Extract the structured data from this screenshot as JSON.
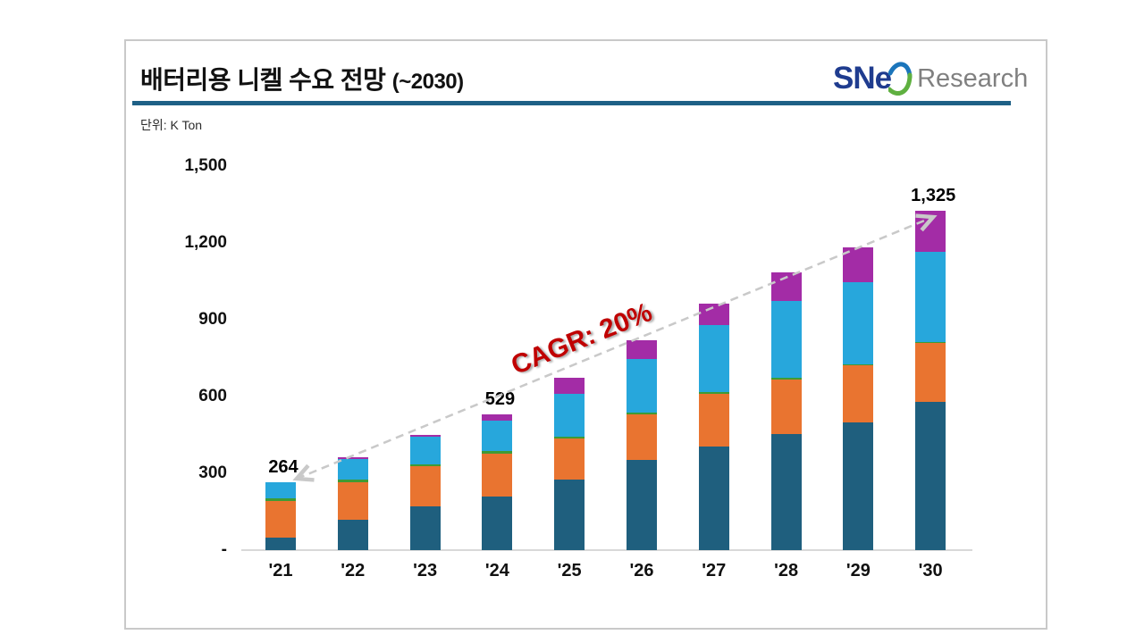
{
  "header": {
    "title_main": "배터리용 니켈 수요 전망",
    "title_suffix": "(~2030)",
    "unit_label": "단위: K Ton",
    "logo": {
      "wordmark": "SNe",
      "suffix": "Research"
    }
  },
  "annotation": {
    "cagr_label": "CAGR: 20%"
  },
  "colors": {
    "title_underline": "#1e6086",
    "axis_line": "#d9d9d9",
    "trend_line": "#c9c9c9",
    "card_border": "#c9c9c9",
    "cagr_red": "#c00000",
    "logo_blue": "#1f3c8f",
    "logo_swoosh_blue": "#1b75bb",
    "logo_swoosh_green": "#5fb040",
    "logo_gray": "#808080"
  },
  "chart_data": {
    "type": "bar",
    "stacked": true,
    "title": "배터리용 니켈 수요 전망 (~2030)",
    "unit": "K Ton",
    "categories": [
      "'21",
      "'22",
      "'23",
      "'24",
      "'25",
      "'26",
      "'27",
      "'28",
      "'29",
      "'30"
    ],
    "series": [
      {
        "name": "dark-teal-segment",
        "color": "#1f5f7e",
        "values": [
          50,
          119,
          172,
          208,
          274,
          352,
          405,
          455,
          498,
          580
        ]
      },
      {
        "name": "orange-segment",
        "color": "#e97430",
        "values": [
          143,
          146,
          155,
          170,
          161,
          178,
          204,
          212,
          224,
          230
        ]
      },
      {
        "name": "green-segment",
        "color": "#3e9b35",
        "values": [
          9,
          12,
          8,
          8,
          8,
          8,
          7,
          5,
          4,
          4
        ]
      },
      {
        "name": "light-blue-segment",
        "color": "#27a7dc",
        "values": [
          62,
          78,
          108,
          119,
          169,
          210,
          262,
          301,
          319,
          350
        ]
      },
      {
        "name": "purple-segment",
        "color": "#a32ca6",
        "values": [
          0,
          9,
          8,
          24,
          60,
          72,
          85,
          111,
          137,
          161
        ]
      }
    ],
    "totals": [
      264,
      364,
      451,
      529,
      672,
      820,
      963,
      1084,
      1182,
      1325
    ],
    "data_labels": [
      {
        "index": 0,
        "text": "264"
      },
      {
        "index": 3,
        "text": "529"
      },
      {
        "index": 9,
        "text": "1,325"
      }
    ],
    "y_ticks": [
      {
        "value": 1500,
        "label": "1,500"
      },
      {
        "value": 1200,
        "label": "1,200"
      },
      {
        "value": 900,
        "label": "900"
      },
      {
        "value": 600,
        "label": "600"
      },
      {
        "value": 300,
        "label": "300"
      },
      {
        "value": 0,
        "label": "-"
      }
    ],
    "ylim": [
      0,
      1500
    ],
    "legend": false,
    "grid": false,
    "trend_annotation": "CAGR: 20%"
  }
}
